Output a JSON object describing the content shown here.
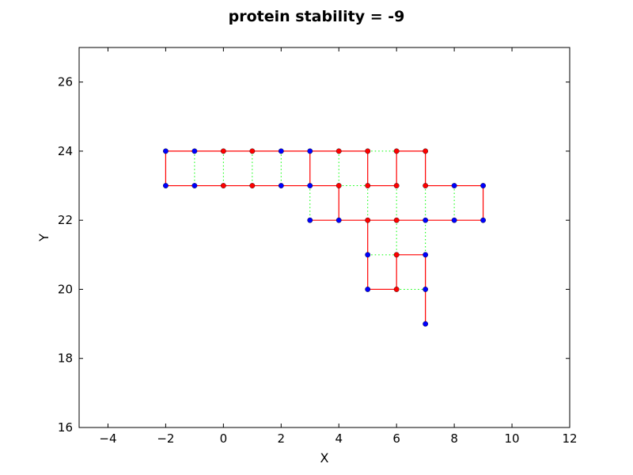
{
  "chart_data": {
    "type": "scatter",
    "title": "protein stability = -9",
    "xlabel": "X",
    "ylabel": "Y",
    "xlim": [
      -5,
      12
    ],
    "ylim": [
      16,
      27
    ],
    "xticks": [
      -4,
      -2,
      0,
      2,
      4,
      6,
      8,
      10,
      12
    ],
    "yticks": [
      16,
      18,
      20,
      22,
      24,
      26
    ],
    "xtick_labels": [
      "−4",
      "−2",
      "0",
      "2",
      "4",
      "6",
      "8",
      "10",
      "12"
    ],
    "ytick_labels": [
      "16",
      "18",
      "20",
      "22",
      "24",
      "26"
    ],
    "grid": false,
    "colors": {
      "chain": "#ff0000",
      "contact": "#00ff00",
      "polar_residue": "#0000ff",
      "hydrophobic_residue": "#ff0000",
      "marker_edge": "#000000"
    },
    "residues": [
      {
        "x": 7,
        "y": 19,
        "type": "P"
      },
      {
        "x": 7,
        "y": 20,
        "type": "P"
      },
      {
        "x": 7,
        "y": 21,
        "type": "P"
      },
      {
        "x": 6,
        "y": 21,
        "type": "H"
      },
      {
        "x": 6,
        "y": 20,
        "type": "H"
      },
      {
        "x": 5,
        "y": 20,
        "type": "P"
      },
      {
        "x": 5,
        "y": 21,
        "type": "P"
      },
      {
        "x": 5,
        "y": 22,
        "type": "H"
      },
      {
        "x": 4,
        "y": 22,
        "type": "P"
      },
      {
        "x": 3,
        "y": 22,
        "type": "P"
      },
      {
        "x": 3,
        "y": 23,
        "type": "P"
      },
      {
        "x": 3,
        "y": 24,
        "type": "P"
      },
      {
        "x": 4,
        "y": 24,
        "type": "H"
      },
      {
        "x": 4,
        "y": 23,
        "type": "H"
      },
      {
        "x": 5,
        "y": 23,
        "type": "H"
      },
      {
        "x": 5,
        "y": 24,
        "type": "H"
      },
      {
        "x": 6,
        "y": 24,
        "type": "H"
      },
      {
        "x": 6,
        "y": 23,
        "type": "H"
      },
      {
        "x": 7,
        "y": 23,
        "type": "H"
      },
      {
        "x": 7,
        "y": 24,
        "type": "H"
      },
      {
        "x": 2,
        "y": 24,
        "type": "P"
      },
      {
        "x": 1,
        "y": 24,
        "type": "H"
      },
      {
        "x": 0,
        "y": 24,
        "type": "H"
      },
      {
        "x": -1,
        "y": 24,
        "type": "P"
      },
      {
        "x": -2,
        "y": 24,
        "type": "P"
      },
      {
        "x": -2,
        "y": 23,
        "type": "P"
      },
      {
        "x": -1,
        "y": 23,
        "type": "P"
      },
      {
        "x": 0,
        "y": 23,
        "type": "H"
      },
      {
        "x": 1,
        "y": 23,
        "type": "H"
      },
      {
        "x": 2,
        "y": 23,
        "type": "P"
      },
      {
        "x": 8,
        "y": 23,
        "type": "P"
      },
      {
        "x": 9,
        "y": 23,
        "type": "P"
      },
      {
        "x": 9,
        "y": 22,
        "type": "P"
      },
      {
        "x": 8,
        "y": 22,
        "type": "P"
      },
      {
        "x": 7,
        "y": 22,
        "type": "P"
      },
      {
        "x": 6,
        "y": 22,
        "type": "H"
      }
    ],
    "chain_segments": [
      [
        [
          7,
          19
        ],
        [
          7,
          21
        ],
        [
          6,
          21
        ],
        [
          6,
          20
        ],
        [
          5,
          20
        ],
        [
          5,
          22
        ],
        [
          4,
          22
        ],
        [
          3,
          22
        ]
      ],
      [
        [
          4,
          22
        ],
        [
          4,
          23
        ],
        [
          3,
          23
        ],
        [
          3,
          24
        ],
        [
          5,
          24
        ],
        [
          5,
          23
        ],
        [
          6,
          23
        ],
        [
          6,
          24
        ],
        [
          7,
          24
        ],
        [
          7,
          23
        ],
        [
          9,
          23
        ],
        [
          9,
          22
        ],
        [
          5,
          22
        ]
      ],
      [
        [
          3,
          23
        ],
        [
          -2,
          23
        ],
        [
          -2,
          24
        ],
        [
          3,
          24
        ]
      ]
    ],
    "contacts": [
      [
        [
          -1,
          24
        ],
        [
          -1,
          23
        ]
      ],
      [
        [
          0,
          24
        ],
        [
          0,
          23
        ]
      ],
      [
        [
          1,
          24
        ],
        [
          1,
          23
        ]
      ],
      [
        [
          2,
          24
        ],
        [
          2,
          23
        ]
      ],
      [
        [
          3,
          23
        ],
        [
          3,
          22
        ]
      ],
      [
        [
          4,
          24
        ],
        [
          4,
          23
        ]
      ],
      [
        [
          5,
          24
        ],
        [
          6,
          24
        ]
      ],
      [
        [
          5,
          23
        ],
        [
          5,
          22
        ]
      ],
      [
        [
          4,
          23
        ],
        [
          5,
          23
        ]
      ],
      [
        [
          6,
          23
        ],
        [
          6,
          22
        ]
      ],
      [
        [
          6,
          22
        ],
        [
          6,
          21
        ]
      ],
      [
        [
          5,
          21
        ],
        [
          6,
          21
        ]
      ],
      [
        [
          6,
          20
        ],
        [
          7,
          20
        ]
      ],
      [
        [
          7,
          23
        ],
        [
          7,
          21
        ]
      ],
      [
        [
          8,
          23
        ],
        [
          8,
          22
        ]
      ]
    ]
  }
}
